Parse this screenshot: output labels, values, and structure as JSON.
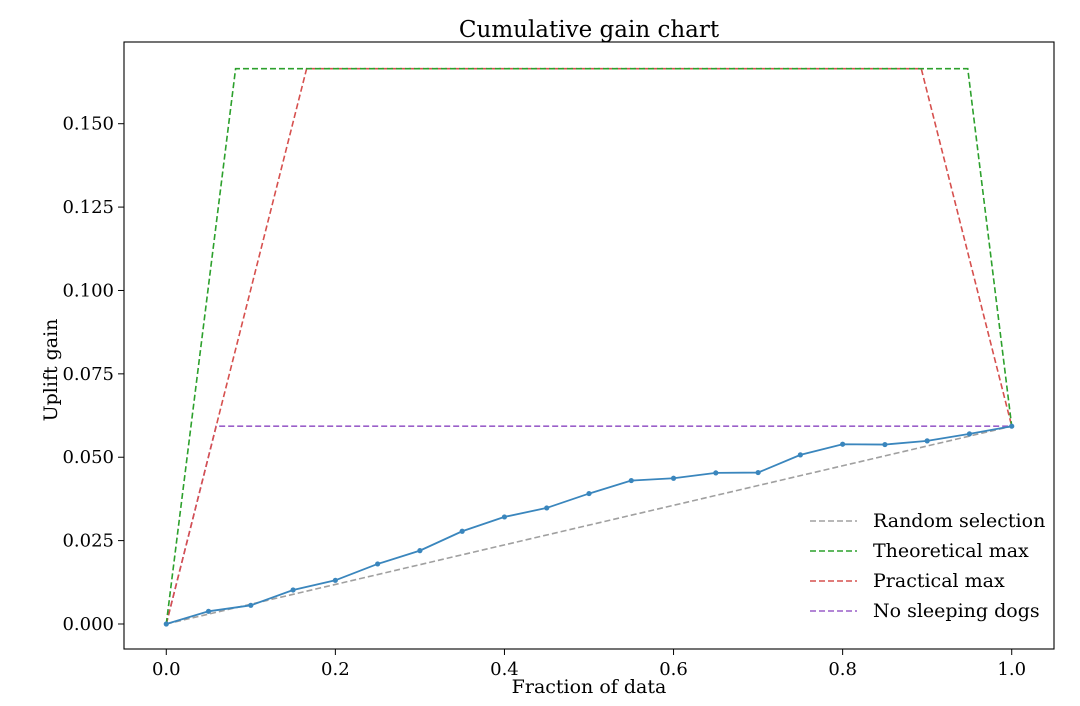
{
  "chart_data": {
    "type": "line",
    "title": "Cumulative gain chart",
    "xlabel": "Fraction of data",
    "ylabel": "Uplift gain",
    "xlim": [
      -0.05,
      1.05
    ],
    "ylim": [
      -0.0075,
      0.1745
    ],
    "xticks": [
      "0.0",
      "0.2",
      "0.4",
      "0.6",
      "0.8",
      "1.0"
    ],
    "xtick_values": [
      0.0,
      0.2,
      0.4,
      0.6,
      0.8,
      1.0
    ],
    "yticks": [
      "0.000",
      "0.025",
      "0.050",
      "0.075",
      "0.100",
      "0.125",
      "0.150"
    ],
    "ytick_values": [
      0.0,
      0.025,
      0.05,
      0.075,
      0.1,
      0.125,
      0.15
    ],
    "grid": false,
    "legend_position": "bottom-right",
    "series": [
      {
        "name": "",
        "color": "#3a86bd",
        "style": "solid",
        "markers": true,
        "x": [
          0.0,
          0.05,
          0.1,
          0.15,
          0.2,
          0.25,
          0.3,
          0.35,
          0.4,
          0.45,
          0.5,
          0.55,
          0.6,
          0.65,
          0.7,
          0.75,
          0.8,
          0.85,
          0.9,
          0.95,
          1.0
        ],
        "y": [
          0.0,
          0.0038,
          0.0056,
          0.0102,
          0.0131,
          0.018,
          0.022,
          0.0278,
          0.0321,
          0.0348,
          0.0391,
          0.043,
          0.0437,
          0.0453,
          0.0454,
          0.0507,
          0.0539,
          0.0538,
          0.0549,
          0.057,
          0.0593
        ]
      },
      {
        "name": "Random selection",
        "color": "#a0a0a0",
        "style": "dashed",
        "markers": false,
        "x": [
          0.0,
          1.0
        ],
        "y": [
          0.0,
          0.0593
        ]
      },
      {
        "name": "Theoretical max",
        "color": "#2ca02c",
        "style": "dashed",
        "markers": false,
        "x": [
          0.0,
          0.082,
          0.948,
          1.0
        ],
        "y": [
          0.0,
          0.1665,
          0.1665,
          0.0593
        ]
      },
      {
        "name": "Practical max",
        "color": "#d6504e",
        "style": "dashed",
        "markers": false,
        "x": [
          0.0,
          0.059,
          0.166,
          0.893,
          1.0
        ],
        "y": [
          0.0,
          0.0593,
          0.1665,
          0.1665,
          0.0593
        ]
      },
      {
        "name": "No sleeping dogs",
        "color": "#9a5fc9",
        "style": "dashed",
        "markers": false,
        "x": [
          0.0,
          0.059,
          1.0
        ],
        "y": [
          0.0,
          0.0593,
          0.0593
        ]
      }
    ],
    "legend": [
      {
        "label": "Random selection",
        "color": "#a0a0a0"
      },
      {
        "label": "Theoretical max",
        "color": "#2ca02c"
      },
      {
        "label": "Practical max",
        "color": "#d6504e"
      },
      {
        "label": "No sleeping dogs",
        "color": "#9a5fc9"
      }
    ]
  }
}
